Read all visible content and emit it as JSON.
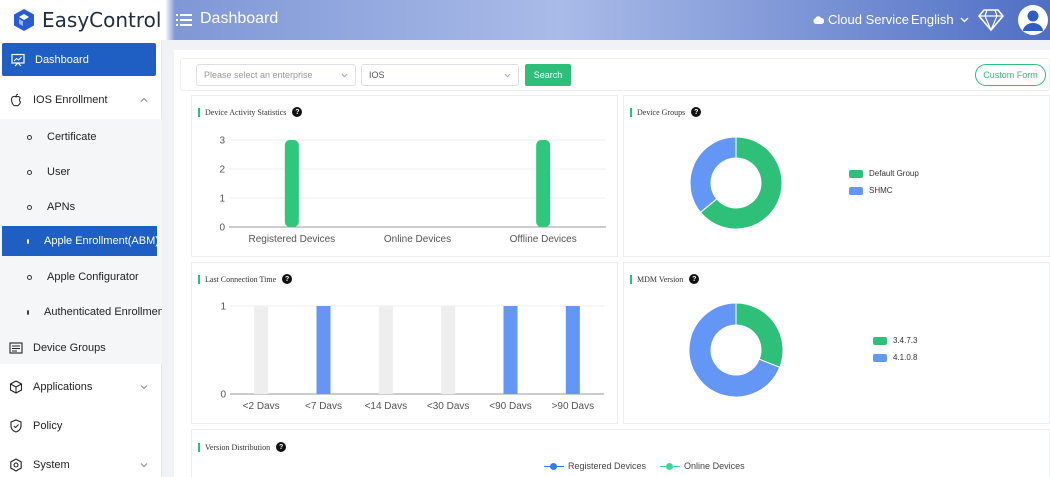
{
  "app": {
    "name": "EasyControl"
  },
  "header": {
    "title": "Dashboard",
    "cloud_label": "Cloud Service",
    "language": "English"
  },
  "sidebar": {
    "items": [
      {
        "label": "Dashboard",
        "icon": "dashboard-icon"
      },
      {
        "label": "IOS Enrollment",
        "icon": "apple-icon"
      },
      {
        "label": "Device Groups",
        "icon": "device-groups-icon"
      },
      {
        "label": "Applications",
        "icon": "applications-icon"
      },
      {
        "label": "Policy",
        "icon": "policy-icon"
      },
      {
        "label": "System",
        "icon": "system-icon"
      }
    ],
    "sub_items": [
      {
        "label": "Certificate"
      },
      {
        "label": "User"
      },
      {
        "label": "APNs"
      },
      {
        "label": "Apple Enrollment(ABM)"
      },
      {
        "label": "Apple Configurator"
      },
      {
        "label": "Authenticated Enrollment"
      }
    ]
  },
  "filters": {
    "enterprise_placeholder": "Please select an enterprise",
    "platform_value": "IOS",
    "search_label": "Search",
    "custom_form_label": "Custom Form"
  },
  "cards": {
    "activity": {
      "title": "Device Activity Statistics"
    },
    "groups": {
      "title": "Device Groups"
    },
    "last_connection": {
      "title": "Last Connection Time"
    },
    "mdm": {
      "title": "MDM Version"
    },
    "version_dist": {
      "title": "Version Distribution"
    }
  },
  "chart_data": [
    {
      "type": "bar",
      "title": "Device Activity Statistics",
      "categories": [
        "Registered Devices",
        "Online Devices",
        "Offline Devices"
      ],
      "values": [
        3,
        0,
        3
      ],
      "yticks": [
        0,
        1,
        2,
        3
      ],
      "ylim": [
        0,
        3
      ],
      "color": "#2ec77e"
    },
    {
      "type": "pie",
      "title": "Device Groups",
      "labels": [
        "Default Group",
        "SHMC"
      ],
      "values": [
        0.64,
        0.36
      ],
      "colors": [
        "#2ebf78",
        "#6496f5"
      ],
      "legend": "right"
    },
    {
      "type": "bar",
      "title": "Last Connection Time",
      "categories": [
        "<2 Davs",
        "<7 Davs",
        "<14 Davs",
        "<30 Davs",
        "<90 Davs",
        ">90 Davs"
      ],
      "values": [
        0,
        1,
        0,
        0,
        1,
        1
      ],
      "yticks": [
        0,
        1
      ],
      "ylim": [
        0,
        1
      ],
      "color": "#6496f5",
      "background_bars": true
    },
    {
      "type": "pie",
      "title": "MDM Version",
      "labels": [
        "3.4.7.3",
        "4.1.0.8"
      ],
      "values": [
        0.31,
        0.69
      ],
      "colors": [
        "#2ebf78",
        "#6496f5"
      ],
      "legend": "right"
    },
    {
      "type": "line",
      "title": "Version Distribution",
      "series": [
        {
          "name": "Registered Devices",
          "color": "#2f7cf0"
        },
        {
          "name": "Online Devices",
          "color": "#3fd49a"
        }
      ],
      "legend": "bottom"
    }
  ]
}
